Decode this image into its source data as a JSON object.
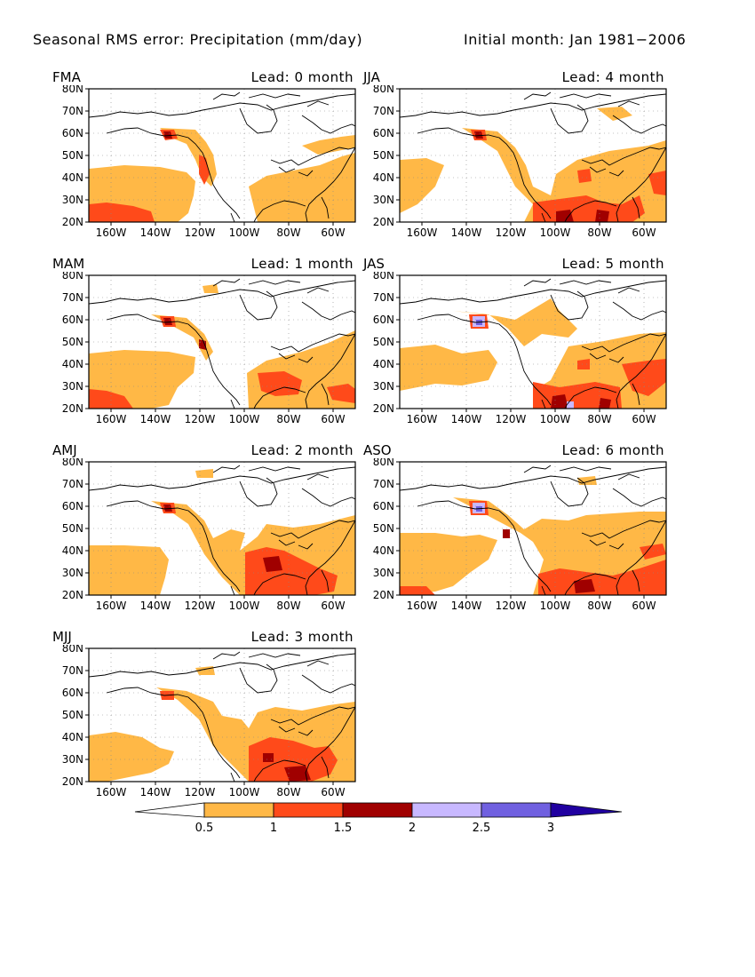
{
  "header": {
    "title": "Seasonal RMS error: Precipitation (mm/day)",
    "initial": "Initial month: Jan 1981−2006"
  },
  "axes": {
    "lat_ticks": [
      "80N",
      "70N",
      "60N",
      "50N",
      "40N",
      "30N",
      "20N"
    ],
    "lon_ticks": [
      "160W",
      "140W",
      "120W",
      "100W",
      "80W",
      "60W"
    ]
  },
  "colors": {
    "c0_5": "#ffb846",
    "c1": "#ff4a1a",
    "c1_5": "#a00000",
    "c2": "#c8b8ff",
    "c2_5": "#7060e0",
    "c3": "#2000a0",
    "land_outline": "#000000"
  },
  "panels": [
    {
      "season": "FMA",
      "lead": "Lead: 0 month"
    },
    {
      "season": "JJA",
      "lead": "Lead: 4 month"
    },
    {
      "season": "MAM",
      "lead": "Lead: 1 month"
    },
    {
      "season": "JAS",
      "lead": "Lead: 5 month"
    },
    {
      "season": "AMJ",
      "lead": "Lead: 2 month"
    },
    {
      "season": "ASO",
      "lead": "Lead: 6 month"
    },
    {
      "season": "MJJ",
      "lead": "Lead: 3 month"
    }
  ],
  "colorbar": {
    "labels": [
      "0.5",
      "1",
      "1.5",
      "2",
      "2.5",
      "3"
    ]
  }
}
